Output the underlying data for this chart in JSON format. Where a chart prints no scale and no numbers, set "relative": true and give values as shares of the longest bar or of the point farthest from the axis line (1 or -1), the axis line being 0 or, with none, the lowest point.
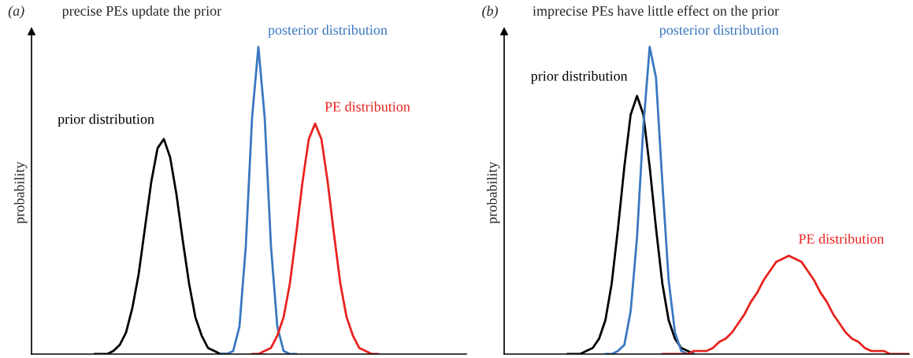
{
  "chart_data": [
    {
      "type": "line",
      "title": "precise PEs update the prior",
      "ylabel": "probability",
      "annotations": [
        "(a)"
      ],
      "relative": true,
      "legend": false,
      "tick_labels": false,
      "categories": [
        null,
        null,
        null,
        null,
        null,
        null,
        null,
        null,
        null,
        null,
        null,
        null,
        null,
        null,
        null,
        null,
        null,
        null,
        null,
        null,
        null,
        null,
        null,
        null,
        null,
        null,
        null,
        null,
        null,
        null,
        null,
        null,
        null,
        null,
        null,
        null,
        null,
        null,
        null,
        null,
        null,
        null,
        null,
        null,
        null,
        null,
        null,
        null,
        null,
        null,
        null,
        null,
        null,
        null,
        null,
        null,
        null,
        null,
        null,
        null,
        null,
        null,
        null,
        null,
        null,
        null,
        null,
        null,
        null,
        null
      ],
      "series": [
        {
          "name": "prior distribution",
          "color": "#000000",
          "values": [
            null,
            null,
            null,
            null,
            null,
            null,
            null,
            null,
            null,
            null,
            0,
            0,
            0,
            0.01,
            0.03,
            0.07,
            0.15,
            0.26,
            0.41,
            0.56,
            0.67,
            0.7,
            0.64,
            0.52,
            0.37,
            0.23,
            0.12,
            0.06,
            0.02,
            0.01,
            0,
            0,
            null,
            null,
            null,
            null,
            null,
            null,
            null,
            null,
            null,
            null,
            null,
            null,
            null,
            null,
            null,
            null,
            null,
            null,
            null,
            null,
            null,
            null,
            null,
            null,
            null,
            null,
            null,
            null,
            null,
            null,
            null,
            null,
            null,
            null,
            null,
            null,
            null,
            null
          ]
        },
        {
          "name": "posterior distribution",
          "color": "#3a78c0",
          "values": [
            null,
            null,
            null,
            null,
            null,
            null,
            null,
            null,
            null,
            null,
            null,
            null,
            null,
            null,
            null,
            null,
            null,
            null,
            null,
            null,
            null,
            null,
            null,
            null,
            null,
            null,
            null,
            null,
            null,
            null,
            0,
            0,
            0.01,
            0.09,
            0.35,
            0.77,
            1,
            0.77,
            0.35,
            0.09,
            0.01,
            0,
            0,
            null,
            null,
            null,
            null,
            null,
            null,
            null,
            null,
            null,
            null,
            null,
            null,
            null,
            null,
            null,
            null,
            null,
            null,
            null,
            null,
            null,
            null,
            null,
            null,
            null,
            null,
            null
          ]
        },
        {
          "name": "PE distribution",
          "color": "#e8231f",
          "values": [
            null,
            null,
            null,
            null,
            null,
            null,
            null,
            null,
            null,
            null,
            null,
            null,
            null,
            null,
            null,
            null,
            null,
            null,
            null,
            null,
            null,
            null,
            null,
            null,
            null,
            null,
            null,
            null,
            null,
            null,
            null,
            null,
            null,
            null,
            null,
            0,
            0,
            0.01,
            0.02,
            0.06,
            0.12,
            0.23,
            0.39,
            0.56,
            0.7,
            0.75,
            0.7,
            0.56,
            0.39,
            0.23,
            0.12,
            0.06,
            0.02,
            0.01,
            0,
            0,
            null,
            null,
            null,
            null,
            null,
            null,
            null,
            null,
            null,
            null,
            null,
            null,
            null,
            null
          ]
        }
      ]
    },
    {
      "type": "line",
      "title": "imprecise PEs have little effect on the prior",
      "ylabel": "probability",
      "annotations": [
        "(b)"
      ],
      "relative": true,
      "legend": false,
      "tick_labels": false,
      "categories": [
        null,
        null,
        null,
        null,
        null,
        null,
        null,
        null,
        null,
        null,
        null,
        null,
        null,
        null,
        null,
        null,
        null,
        null,
        null,
        null,
        null,
        null,
        null,
        null,
        null,
        null,
        null,
        null,
        null,
        null,
        null,
        null,
        null,
        null,
        null,
        null,
        null,
        null,
        null,
        null,
        null,
        null,
        null,
        null,
        null,
        null,
        null,
        null,
        null,
        null,
        null,
        null,
        null,
        null,
        null,
        null,
        null,
        null,
        null,
        null,
        null,
        null,
        null,
        null,
        null
      ],
      "series": [
        {
          "name": "prior distribution",
          "color": "#000000",
          "values": [
            null,
            null,
            null,
            null,
            null,
            null,
            null,
            null,
            null,
            null,
            0,
            0,
            0,
            0.01,
            0.02,
            0.05,
            0.11,
            0.23,
            0.41,
            0.61,
            0.78,
            0.84,
            0.78,
            0.61,
            0.41,
            0.23,
            0.11,
            0.05,
            0.02,
            0.01,
            0,
            null,
            null,
            null,
            null,
            null,
            null,
            null,
            null,
            null,
            null,
            null,
            null,
            null,
            null,
            null,
            null,
            null,
            null,
            null,
            null,
            null,
            null,
            null,
            null,
            null,
            null,
            null,
            null,
            null,
            null,
            null,
            null,
            null,
            null
          ]
        },
        {
          "name": "posterior distribution",
          "color": "#3a78c0",
          "values": [
            null,
            null,
            null,
            null,
            null,
            null,
            null,
            null,
            null,
            null,
            null,
            null,
            null,
            null,
            null,
            null,
            0,
            0,
            0.01,
            0.03,
            0.14,
            0.38,
            0.74,
            1,
            0.9,
            0.56,
            0.24,
            0.07,
            0.01,
            0,
            0,
            null,
            null,
            null,
            null,
            null,
            null,
            null,
            null,
            null,
            null,
            null,
            null,
            null,
            null,
            null,
            null,
            null,
            null,
            null,
            null,
            null,
            null,
            null,
            null,
            null,
            null,
            null,
            null,
            null,
            null,
            null,
            null,
            null,
            null
          ]
        },
        {
          "name": "PE distribution",
          "color": "#e8231f",
          "values": [
            null,
            null,
            null,
            null,
            null,
            null,
            null,
            null,
            null,
            null,
            null,
            null,
            null,
            null,
            null,
            null,
            null,
            null,
            null,
            null,
            null,
            null,
            null,
            null,
            null,
            0,
            0,
            0,
            0,
            0,
            0.01,
            0.01,
            0.01,
            0.02,
            0.04,
            0.05,
            0.07,
            0.1,
            0.13,
            0.17,
            0.2,
            0.24,
            0.27,
            0.3,
            0.31,
            0.32,
            0.31,
            0.3,
            0.27,
            0.24,
            0.2,
            0.17,
            0.13,
            0.1,
            0.07,
            0.05,
            0.04,
            0.02,
            0.01,
            0.01,
            0.01,
            0,
            0,
            0,
            0
          ]
        }
      ]
    }
  ]
}
